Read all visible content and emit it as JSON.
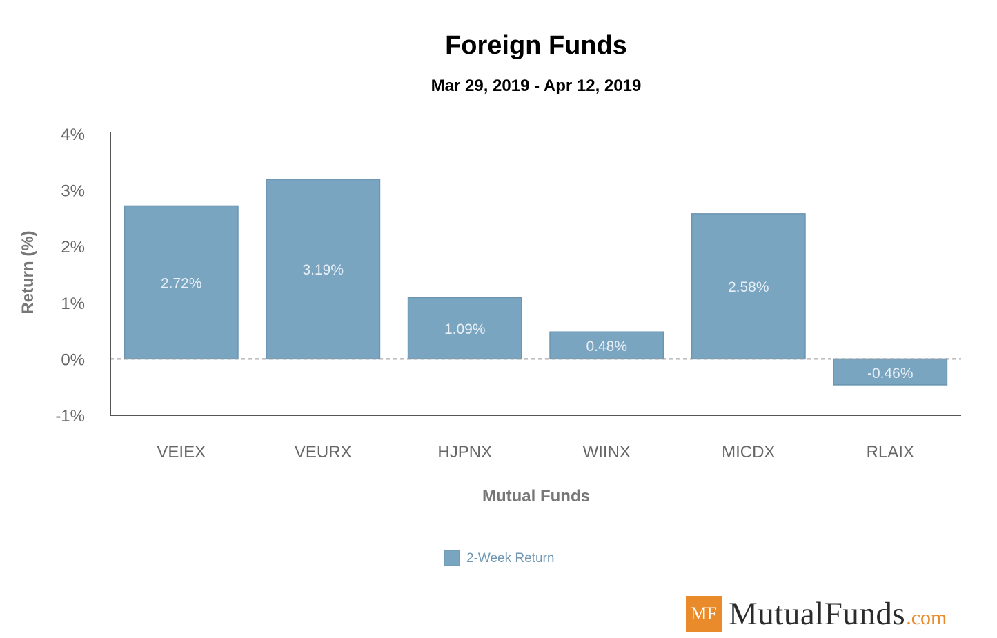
{
  "colors": {
    "bar": "#7aa5c1",
    "bar_stroke": "#6a94b0",
    "axis": "#555555",
    "zero_line": "#999999",
    "legend_text": "#6f97b3",
    "logo_orange": "#e98b2a",
    "logo_tld": "#e98b2a"
  },
  "chart_data": {
    "type": "bar",
    "title": "Foreign Funds",
    "subtitle": "Mar 29, 2019 - Apr 12, 2019",
    "xlabel": "Mutual Funds",
    "ylabel": "Return (%)",
    "ylim": [
      -1,
      4
    ],
    "yticks": [
      4,
      3,
      2,
      1,
      0,
      -1
    ],
    "ytick_labels": [
      "4%",
      "3%",
      "2%",
      "1%",
      "0%",
      "-1%"
    ],
    "categories": [
      "VEIEX",
      "VEURX",
      "HJPNX",
      "WIINX",
      "MICDX",
      "RLAIX"
    ],
    "series": [
      {
        "name": "2-Week Return",
        "values": [
          2.72,
          3.19,
          1.09,
          0.48,
          2.58,
          -0.46
        ],
        "labels": [
          "2.72%",
          "3.19%",
          "1.09%",
          "0.48%",
          "2.58%",
          "-0.46%"
        ]
      }
    ],
    "legend": {
      "position": "bottom-center",
      "entries": [
        "2-Week Return"
      ]
    },
    "grid": false,
    "zero_line": "dashed"
  },
  "branding": {
    "logo_mark": "MF",
    "logo_name": "MutualFunds",
    "logo_tld": ".com"
  }
}
